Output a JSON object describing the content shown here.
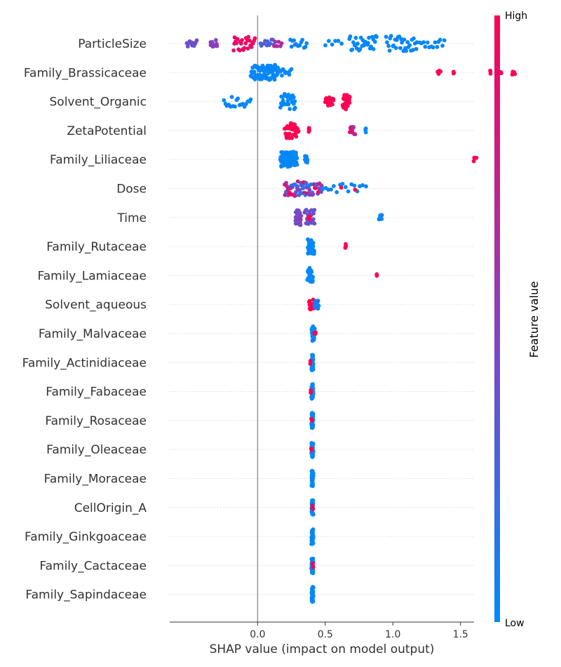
{
  "chart_data": {
    "type": "scatter",
    "subtype": "shap-beeswarm",
    "xlabel": "SHAP value (impact on model output)",
    "x_ticks": [
      "0.0",
      "0.5",
      "1.0",
      "1.5"
    ],
    "x_tick_values": [
      0,
      0.5,
      1.0,
      1.5
    ],
    "xlim": [
      -0.65,
      1.6
    ],
    "zero_line": true,
    "colorbar": {
      "title": "Feature value",
      "high_label": "High",
      "low_label": "Low",
      "low_color": "#008bfb",
      "mid_color": "#8a3fbe",
      "high_color": "#ff0052"
    },
    "features": [
      {
        "name": "ParticleSize",
        "clusters": [
          {
            "x0": -0.52,
            "x1": -0.45,
            "n": 12,
            "c0": 0.35,
            "c1": 0.45
          },
          {
            "x0": -0.35,
            "x1": -0.3,
            "n": 10,
            "c0": 0.45,
            "c1": 0.55
          },
          {
            "x0": -0.18,
            "x1": -0.02,
            "n": 26,
            "c0": 0.8,
            "c1": 1.0
          },
          {
            "x0": 0.02,
            "x1": 0.12,
            "n": 12,
            "c0": 0.2,
            "c1": 0.35
          },
          {
            "x0": 0.12,
            "x1": 0.18,
            "n": 6,
            "c0": 0.55,
            "c1": 0.7
          },
          {
            "x0": 0.24,
            "x1": 0.36,
            "n": 14,
            "c0": 0.0,
            "c1": 0.08
          },
          {
            "x0": 0.5,
            "x1": 0.62,
            "n": 6,
            "c0": 0.0,
            "c1": 0.05
          },
          {
            "x0": 0.68,
            "x1": 0.88,
            "n": 30,
            "c0": 0.0,
            "c1": 0.05
          },
          {
            "x0": 0.95,
            "x1": 1.18,
            "n": 30,
            "c0": 0.0,
            "c1": 0.05
          },
          {
            "x0": 1.2,
            "x1": 1.38,
            "n": 14,
            "c0": 0.0,
            "c1": 0.05
          }
        ]
      },
      {
        "name": "Family_Brassicaceae",
        "clusters": [
          {
            "x0": -0.05,
            "x1": 0.15,
            "n": 80,
            "c0": 0.0,
            "c1": 0.05
          },
          {
            "x0": 0.15,
            "x1": 0.25,
            "n": 12,
            "c0": 0.0,
            "c1": 0.05
          },
          {
            "x0": 1.33,
            "x1": 1.35,
            "n": 4,
            "c0": 1.0,
            "c1": 1.0
          },
          {
            "x0": 1.45,
            "x1": 1.45,
            "n": 3,
            "c0": 1.0,
            "c1": 1.0
          },
          {
            "x0": 1.72,
            "x1": 1.72,
            "n": 3,
            "c0": 1.0,
            "c1": 1.0
          },
          {
            "x0": 1.8,
            "x1": 1.8,
            "n": 2,
            "c0": 1.0,
            "c1": 1.0
          },
          {
            "x0": 1.88,
            "x1": 1.9,
            "n": 6,
            "c0": 1.0,
            "c1": 1.0
          }
        ]
      },
      {
        "name": "Solvent_Organic",
        "clusters": [
          {
            "x0": -0.25,
            "x1": -0.05,
            "n": 18,
            "c0": 0.0,
            "c1": 0.05
          },
          {
            "x0": 0.17,
            "x1": 0.28,
            "n": 30,
            "c0": 0.0,
            "c1": 0.05
          },
          {
            "x0": 0.5,
            "x1": 0.56,
            "n": 16,
            "c0": 1.0,
            "c1": 1.0
          },
          {
            "x0": 0.63,
            "x1": 0.68,
            "n": 30,
            "c0": 1.0,
            "c1": 1.0
          }
        ]
      },
      {
        "name": "ZetaPotential",
        "clusters": [
          {
            "x0": 0.2,
            "x1": 0.3,
            "n": 40,
            "c0": 1.0,
            "c1": 1.0
          },
          {
            "x0": 0.38,
            "x1": 0.38,
            "n": 6,
            "c0": 0.95,
            "c1": 1.0
          },
          {
            "x0": 0.68,
            "x1": 0.72,
            "n": 12,
            "c0": 0.65,
            "c1": 0.9
          },
          {
            "x0": 0.8,
            "x1": 0.8,
            "n": 4,
            "c0": 0.0,
            "c1": 0.0
          }
        ]
      },
      {
        "name": "Family_Liliaceae",
        "clusters": [
          {
            "x0": 0.17,
            "x1": 0.29,
            "n": 80,
            "c0": 0.0,
            "c1": 0.05
          },
          {
            "x0": 0.35,
            "x1": 0.37,
            "n": 10,
            "c0": 0.0,
            "c1": 0.05
          },
          {
            "x0": 1.6,
            "x1": 1.6,
            "n": 3,
            "c0": 1.0,
            "c1": 1.0
          },
          {
            "x0": 1.62,
            "x1": 1.62,
            "n": 1,
            "c0": 1.0,
            "c1": 1.0
          }
        ]
      },
      {
        "name": "Dose",
        "clusters": [
          {
            "x0": 0.2,
            "x1": 0.48,
            "n": 70,
            "c0": 0.0,
            "c1": 1.0
          },
          {
            "x0": 0.48,
            "x1": 0.8,
            "n": 16,
            "c0": 0.0,
            "c1": 0.05
          },
          {
            "x0": 0.62,
            "x1": 0.62,
            "n": 1,
            "c0": 1.0,
            "c1": 1.0
          },
          {
            "x0": 0.72,
            "x1": 0.72,
            "n": 1,
            "c0": 1.0,
            "c1": 1.0
          }
        ]
      },
      {
        "name": "Time",
        "clusters": [
          {
            "x0": 0.28,
            "x1": 0.32,
            "n": 40,
            "c0": 0.3,
            "c1": 0.6
          },
          {
            "x0": 0.35,
            "x1": 0.42,
            "n": 30,
            "c0": 0.3,
            "c1": 0.6
          },
          {
            "x0": 0.38,
            "x1": 0.38,
            "n": 4,
            "c0": 1.0,
            "c1": 1.0
          },
          {
            "x0": 0.9,
            "x1": 0.92,
            "n": 8,
            "c0": 0.0,
            "c1": 0.05
          }
        ]
      },
      {
        "name": "Family_Rutaceae",
        "clusters": [
          {
            "x0": 0.37,
            "x1": 0.42,
            "n": 30,
            "c0": 0.0,
            "c1": 0.05
          },
          {
            "x0": 0.65,
            "x1": 0.65,
            "n": 6,
            "c0": 1.0,
            "c1": 1.0
          }
        ]
      },
      {
        "name": "Family_Lamiaceae",
        "clusters": [
          {
            "x0": 0.37,
            "x1": 0.41,
            "n": 30,
            "c0": 0.0,
            "c1": 0.05
          },
          {
            "x0": 0.88,
            "x1": 0.88,
            "n": 2,
            "c0": 1.0,
            "c1": 1.0
          }
        ]
      },
      {
        "name": "Solvent_aqueous",
        "clusters": [
          {
            "x0": 0.38,
            "x1": 0.42,
            "n": 20,
            "c0": 1.0,
            "c1": 1.0
          },
          {
            "x0": 0.42,
            "x1": 0.45,
            "n": 14,
            "c0": 0.0,
            "c1": 0.2
          }
        ]
      },
      {
        "name": "Family_Malvaceae",
        "clusters": [
          {
            "x0": 0.4,
            "x1": 0.42,
            "n": 40,
            "c0": 0.0,
            "c1": 0.05
          },
          {
            "x0": 0.42,
            "x1": 0.43,
            "n": 3,
            "c0": 1.0,
            "c1": 1.0
          }
        ]
      },
      {
        "name": "Family_Actinidiaceae",
        "clusters": [
          {
            "x0": 0.4,
            "x1": 0.41,
            "n": 40,
            "c0": 0.0,
            "c1": 0.05
          },
          {
            "x0": 0.39,
            "x1": 0.39,
            "n": 2,
            "c0": 1.0,
            "c1": 1.0
          }
        ]
      },
      {
        "name": "Family_Fabaceae",
        "clusters": [
          {
            "x0": 0.4,
            "x1": 0.41,
            "n": 40,
            "c0": 0.0,
            "c1": 0.05
          },
          {
            "x0": 0.39,
            "x1": 0.39,
            "n": 2,
            "c0": 1.0,
            "c1": 1.0
          }
        ]
      },
      {
        "name": "Family_Rosaceae",
        "clusters": [
          {
            "x0": 0.4,
            "x1": 0.41,
            "n": 40,
            "c0": 0.0,
            "c1": 0.05
          },
          {
            "x0": 0.395,
            "x1": 0.405,
            "n": 2,
            "c0": 1.0,
            "c1": 1.0
          }
        ]
      },
      {
        "name": "Family_Oleaceae",
        "clusters": [
          {
            "x0": 0.4,
            "x1": 0.41,
            "n": 40,
            "c0": 0.0,
            "c1": 0.05
          },
          {
            "x0": 0.395,
            "x1": 0.4,
            "n": 2,
            "c0": 1.0,
            "c1": 1.0
          }
        ]
      },
      {
        "name": "Family_Moraceae",
        "clusters": [
          {
            "x0": 0.4,
            "x1": 0.41,
            "n": 40,
            "c0": 0.0,
            "c1": 0.05
          }
        ]
      },
      {
        "name": "CellOrigin_A",
        "clusters": [
          {
            "x0": 0.4,
            "x1": 0.41,
            "n": 40,
            "c0": 0.0,
            "c1": 0.05
          },
          {
            "x0": 0.405,
            "x1": 0.41,
            "n": 3,
            "c0": 1.0,
            "c1": 1.0
          }
        ]
      },
      {
        "name": "Family_Ginkgoaceae",
        "clusters": [
          {
            "x0": 0.4,
            "x1": 0.41,
            "n": 40,
            "c0": 0.0,
            "c1": 0.05
          }
        ]
      },
      {
        "name": "Family_Cactaceae",
        "clusters": [
          {
            "x0": 0.4,
            "x1": 0.41,
            "n": 40,
            "c0": 0.0,
            "c1": 0.05
          },
          {
            "x0": 0.405,
            "x1": 0.41,
            "n": 4,
            "c0": 1.0,
            "c1": 1.0
          }
        ]
      },
      {
        "name": "Family_Sapindaceae",
        "clusters": [
          {
            "x0": 0.4,
            "x1": 0.41,
            "n": 40,
            "c0": 0.0,
            "c1": 0.05
          }
        ]
      }
    ]
  }
}
